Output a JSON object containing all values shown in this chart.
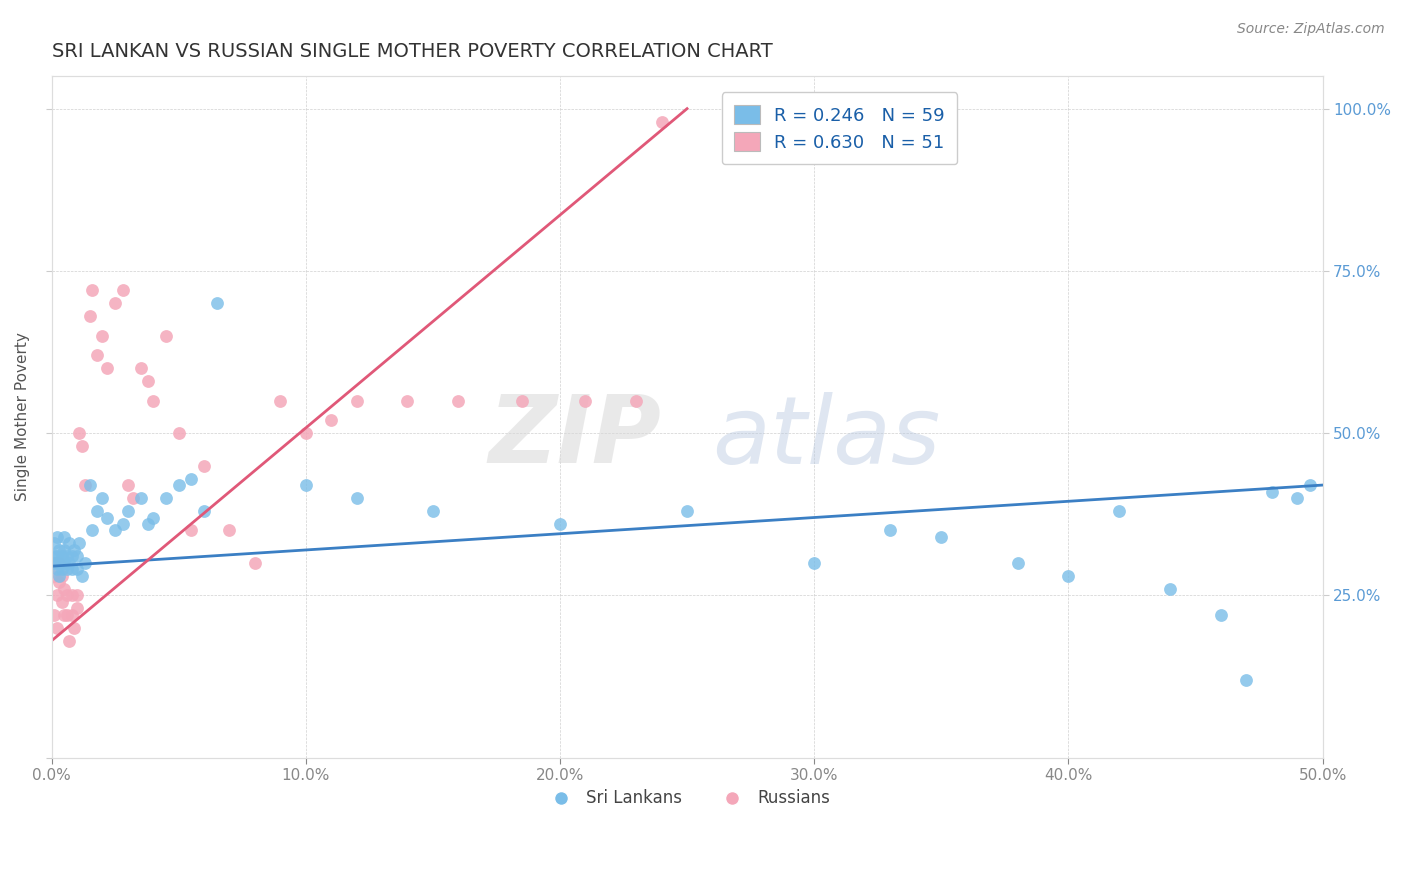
{
  "title": "SRI LANKAN VS RUSSIAN SINGLE MOTHER POVERTY CORRELATION CHART",
  "source": "Source: ZipAtlas.com",
  "ylabel_left": "Single Mother Poverty",
  "xlim": [
    0.0,
    0.5
  ],
  "ylim": [
    0.0,
    1.05
  ],
  "sri_lankan_color": "#7abde8",
  "russian_color": "#f4a7b9",
  "sri_lankan_line_color": "#3b7fc4",
  "russian_line_color": "#e05878",
  "watermark_zip": "ZIP",
  "watermark_atlas": "atlas",
  "watermark_color_zip": "#d8d8d8",
  "watermark_color_atlas": "#b8c8e0",
  "legend_label_sri": "R = 0.246   N = 59",
  "legend_label_rus": "R = 0.630   N = 51",
  "sri_lankan_marker_color": "#7abde8",
  "russian_marker_color": "#f4a7b9",
  "sri_x": [
    0.001,
    0.001,
    0.001,
    0.002,
    0.002,
    0.002,
    0.003,
    0.003,
    0.003,
    0.004,
    0.004,
    0.005,
    0.005,
    0.005,
    0.006,
    0.006,
    0.007,
    0.007,
    0.008,
    0.008,
    0.009,
    0.01,
    0.01,
    0.011,
    0.012,
    0.013,
    0.015,
    0.016,
    0.018,
    0.02,
    0.022,
    0.025,
    0.028,
    0.03,
    0.035,
    0.038,
    0.04,
    0.045,
    0.05,
    0.055,
    0.06,
    0.065,
    0.1,
    0.12,
    0.15,
    0.2,
    0.25,
    0.3,
    0.33,
    0.35,
    0.38,
    0.4,
    0.42,
    0.44,
    0.46,
    0.47,
    0.48,
    0.49,
    0.495
  ],
  "sri_y": [
    0.3,
    0.31,
    0.33,
    0.29,
    0.31,
    0.34,
    0.28,
    0.3,
    0.32,
    0.29,
    0.31,
    0.3,
    0.32,
    0.34,
    0.29,
    0.31,
    0.3,
    0.33,
    0.29,
    0.31,
    0.32,
    0.29,
    0.31,
    0.33,
    0.28,
    0.3,
    0.42,
    0.35,
    0.38,
    0.4,
    0.37,
    0.35,
    0.36,
    0.38,
    0.4,
    0.36,
    0.37,
    0.4,
    0.42,
    0.43,
    0.38,
    0.7,
    0.42,
    0.4,
    0.38,
    0.36,
    0.38,
    0.3,
    0.35,
    0.34,
    0.3,
    0.28,
    0.38,
    0.26,
    0.22,
    0.12,
    0.41,
    0.4,
    0.42
  ],
  "rus_x": [
    0.001,
    0.001,
    0.001,
    0.002,
    0.002,
    0.002,
    0.003,
    0.003,
    0.004,
    0.004,
    0.005,
    0.005,
    0.006,
    0.006,
    0.007,
    0.008,
    0.008,
    0.009,
    0.01,
    0.01,
    0.011,
    0.012,
    0.013,
    0.015,
    0.016,
    0.018,
    0.02,
    0.022,
    0.025,
    0.028,
    0.03,
    0.032,
    0.035,
    0.038,
    0.04,
    0.045,
    0.05,
    0.055,
    0.06,
    0.07,
    0.08,
    0.09,
    0.1,
    0.11,
    0.12,
    0.14,
    0.16,
    0.185,
    0.21,
    0.23,
    0.24
  ],
  "rus_y": [
    0.28,
    0.3,
    0.22,
    0.3,
    0.25,
    0.2,
    0.27,
    0.3,
    0.24,
    0.28,
    0.22,
    0.26,
    0.25,
    0.22,
    0.18,
    0.22,
    0.25,
    0.2,
    0.25,
    0.23,
    0.5,
    0.48,
    0.42,
    0.68,
    0.72,
    0.62,
    0.65,
    0.6,
    0.7,
    0.72,
    0.42,
    0.4,
    0.6,
    0.58,
    0.55,
    0.65,
    0.5,
    0.35,
    0.45,
    0.35,
    0.3,
    0.55,
    0.5,
    0.52,
    0.55,
    0.55,
    0.55,
    0.55,
    0.55,
    0.55,
    0.98
  ],
  "sri_line_x": [
    0.0,
    0.5
  ],
  "sri_line_y": [
    0.295,
    0.42
  ],
  "rus_line_x": [
    0.0,
    0.25
  ],
  "rus_line_y": [
    0.18,
    1.0
  ]
}
